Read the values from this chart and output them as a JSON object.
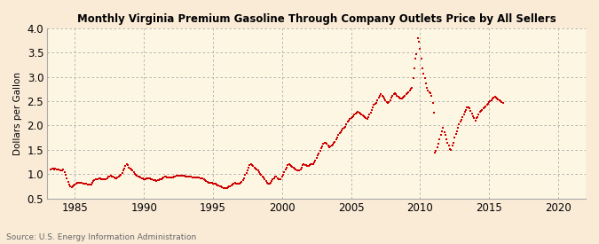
{
  "title": "Monthly Virginia Premium Gasoline Through Company Outlets Price by All Sellers",
  "ylabel": "Dollars per Gallon",
  "source": "Source: U.S. Energy Information Administration",
  "bg_color": "#faebd7",
  "plot_bg_color": "#fdf6e3",
  "line_color": "#cc0000",
  "marker_color": "#cc0000",
  "xlim": [
    1983.0,
    2022.0
  ],
  "ylim": [
    0.5,
    4.0
  ],
  "xticks": [
    1985,
    1990,
    1995,
    2000,
    2005,
    2010,
    2015,
    2020
  ],
  "yticks": [
    0.5,
    1.0,
    1.5,
    2.0,
    2.5,
    3.0,
    3.5,
    4.0
  ],
  "prices": [
    1.1,
    1.12,
    1.11,
    1.1,
    1.11,
    1.1,
    1.09,
    1.09,
    1.08,
    1.07,
    1.08,
    1.09,
    1.04,
    0.99,
    0.92,
    0.84,
    0.78,
    0.74,
    0.73,
    0.74,
    0.76,
    0.78,
    0.8,
    0.82,
    0.82,
    0.83,
    0.83,
    0.82,
    0.81,
    0.8,
    0.8,
    0.8,
    0.79,
    0.79,
    0.79,
    0.79,
    0.82,
    0.85,
    0.87,
    0.89,
    0.9,
    0.9,
    0.91,
    0.91,
    0.9,
    0.89,
    0.89,
    0.89,
    0.9,
    0.92,
    0.94,
    0.95,
    0.96,
    0.95,
    0.94,
    0.93,
    0.92,
    0.92,
    0.93,
    0.94,
    0.96,
    0.98,
    1.02,
    1.07,
    1.12,
    1.16,
    1.2,
    1.18,
    1.14,
    1.11,
    1.09,
    1.07,
    1.04,
    1.01,
    0.99,
    0.97,
    0.95,
    0.94,
    0.93,
    0.92,
    0.91,
    0.9,
    0.9,
    0.91,
    0.91,
    0.92,
    0.91,
    0.9,
    0.89,
    0.88,
    0.87,
    0.87,
    0.86,
    0.87,
    0.88,
    0.89,
    0.9,
    0.91,
    0.93,
    0.94,
    0.94,
    0.93,
    0.93,
    0.93,
    0.93,
    0.93,
    0.93,
    0.94,
    0.95,
    0.96,
    0.97,
    0.97,
    0.97,
    0.97,
    0.97,
    0.97,
    0.96,
    0.95,
    0.95,
    0.95,
    0.95,
    0.95,
    0.94,
    0.93,
    0.93,
    0.93,
    0.93,
    0.93,
    0.93,
    0.93,
    0.92,
    0.92,
    0.91,
    0.89,
    0.87,
    0.85,
    0.84,
    0.83,
    0.83,
    0.83,
    0.82,
    0.81,
    0.8,
    0.8,
    0.78,
    0.77,
    0.76,
    0.75,
    0.74,
    0.73,
    0.72,
    0.72,
    0.72,
    0.72,
    0.73,
    0.74,
    0.75,
    0.77,
    0.79,
    0.81,
    0.82,
    0.81,
    0.8,
    0.8,
    0.8,
    0.82,
    0.84,
    0.87,
    0.92,
    0.98,
    1.03,
    1.08,
    1.13,
    1.18,
    1.21,
    1.19,
    1.17,
    1.14,
    1.11,
    1.09,
    1.07,
    1.04,
    1.01,
    0.98,
    0.95,
    0.93,
    0.89,
    0.85,
    0.82,
    0.8,
    0.81,
    0.83,
    0.86,
    0.89,
    0.92,
    0.95,
    0.94,
    0.92,
    0.9,
    0.89,
    0.9,
    0.94,
    0.99,
    1.04,
    1.09,
    1.14,
    1.19,
    1.21,
    1.19,
    1.17,
    1.15,
    1.13,
    1.11,
    1.09,
    1.08,
    1.07,
    1.08,
    1.1,
    1.14,
    1.19,
    1.21,
    1.19,
    1.18,
    1.17,
    1.17,
    1.19,
    1.21,
    1.21,
    1.21,
    1.24,
    1.28,
    1.33,
    1.38,
    1.43,
    1.48,
    1.53,
    1.57,
    1.62,
    1.65,
    1.65,
    1.62,
    1.59,
    1.55,
    1.57,
    1.59,
    1.61,
    1.64,
    1.67,
    1.71,
    1.76,
    1.81,
    1.84,
    1.87,
    1.9,
    1.93,
    1.96,
    1.98,
    2.03,
    2.08,
    2.1,
    2.13,
    2.15,
    2.17,
    2.19,
    2.22,
    2.25,
    2.27,
    2.29,
    2.27,
    2.25,
    2.23,
    2.21,
    2.19,
    2.17,
    2.15,
    2.13,
    2.17,
    2.22,
    2.27,
    2.32,
    2.37,
    2.42,
    2.45,
    2.47,
    2.52,
    2.57,
    2.62,
    2.65,
    2.62,
    2.59,
    2.55,
    2.52,
    2.49,
    2.47,
    2.49,
    2.52,
    2.57,
    2.62,
    2.65,
    2.67,
    2.65,
    2.62,
    2.59,
    2.57,
    2.55,
    2.55,
    2.57,
    2.59,
    2.62,
    2.65,
    2.67,
    2.69,
    2.72,
    2.75,
    2.77,
    2.97,
    3.17,
    3.37,
    3.47,
    3.8,
    3.73,
    3.57,
    3.37,
    3.17,
    3.07,
    2.97,
    2.87,
    2.77,
    2.72,
    2.69,
    2.67,
    2.62,
    2.47,
    2.27,
    1.45,
    1.48,
    1.55,
    1.62,
    1.72,
    1.8,
    1.88,
    1.95,
    1.87,
    1.8,
    1.72,
    1.65,
    1.58,
    1.52,
    1.5,
    1.58,
    1.65,
    1.75,
    1.82,
    1.88,
    1.95,
    2.02,
    2.08,
    2.12,
    2.18,
    2.22,
    2.28,
    2.32,
    2.38,
    2.38,
    2.35,
    2.3,
    2.25,
    2.2,
    2.15,
    2.1,
    2.15,
    2.18,
    2.22,
    2.28,
    2.3,
    2.32,
    2.35,
    2.38,
    2.4,
    2.43,
    2.45,
    2.48,
    2.5,
    2.52,
    2.55,
    2.58,
    2.6,
    2.58,
    2.56,
    2.54,
    2.52,
    2.5,
    2.48,
    2.46
  ],
  "start_year": 1983,
  "start_month": 4
}
